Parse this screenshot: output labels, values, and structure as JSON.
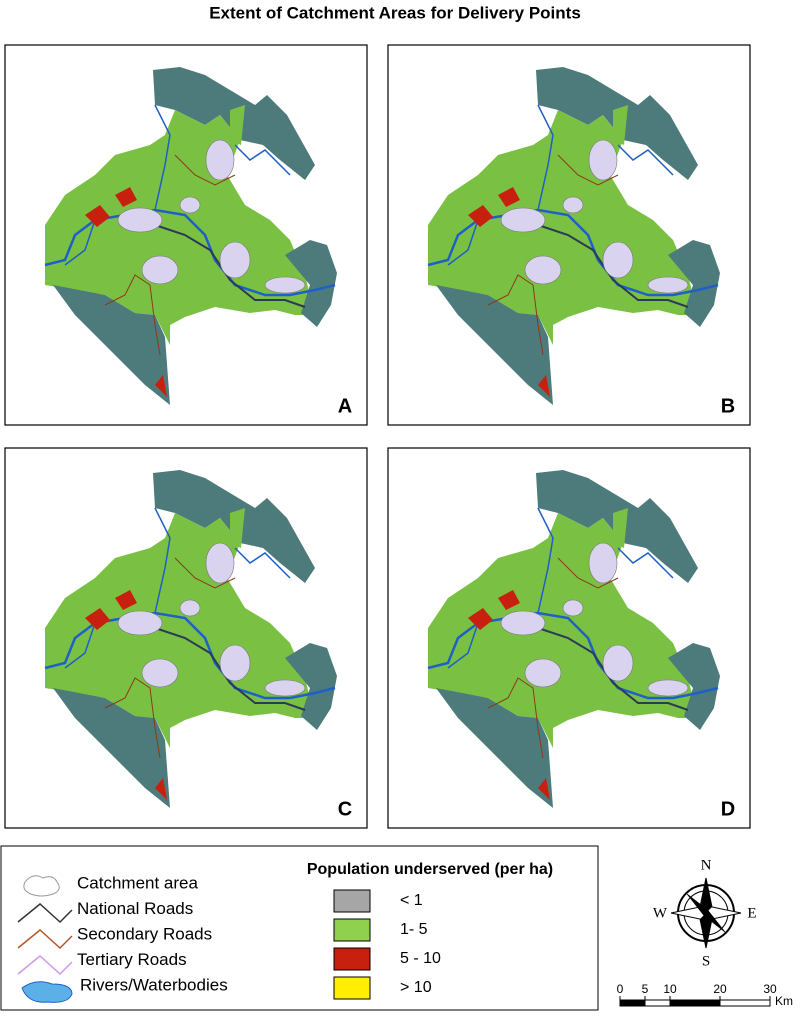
{
  "title": "Extent of Catchment Areas for Delivery Points",
  "panels": [
    "A",
    "B",
    "C",
    "D"
  ],
  "legend": {
    "items": [
      "Catchment area",
      "National Roads",
      "Secondary Roads",
      "Tertiary Roads",
      "Rivers/Waterbodies"
    ],
    "population": {
      "title": "Population underserved (per ha)",
      "classes": [
        {
          "label": "< 1",
          "color": "#a6a6a6"
        },
        {
          "label": "1- 5",
          "color": "#8fd14f"
        },
        {
          "label": "5 - 10",
          "color": "#c8200e"
        },
        {
          "label": "> 10",
          "color": "#ffee00"
        }
      ]
    }
  },
  "compass": {
    "north": "N",
    "east": "E",
    "south": "S",
    "west": "W"
  },
  "scale_bar": {
    "ticks": [
      0,
      5,
      10,
      20,
      30
    ],
    "unit": "Km"
  }
}
